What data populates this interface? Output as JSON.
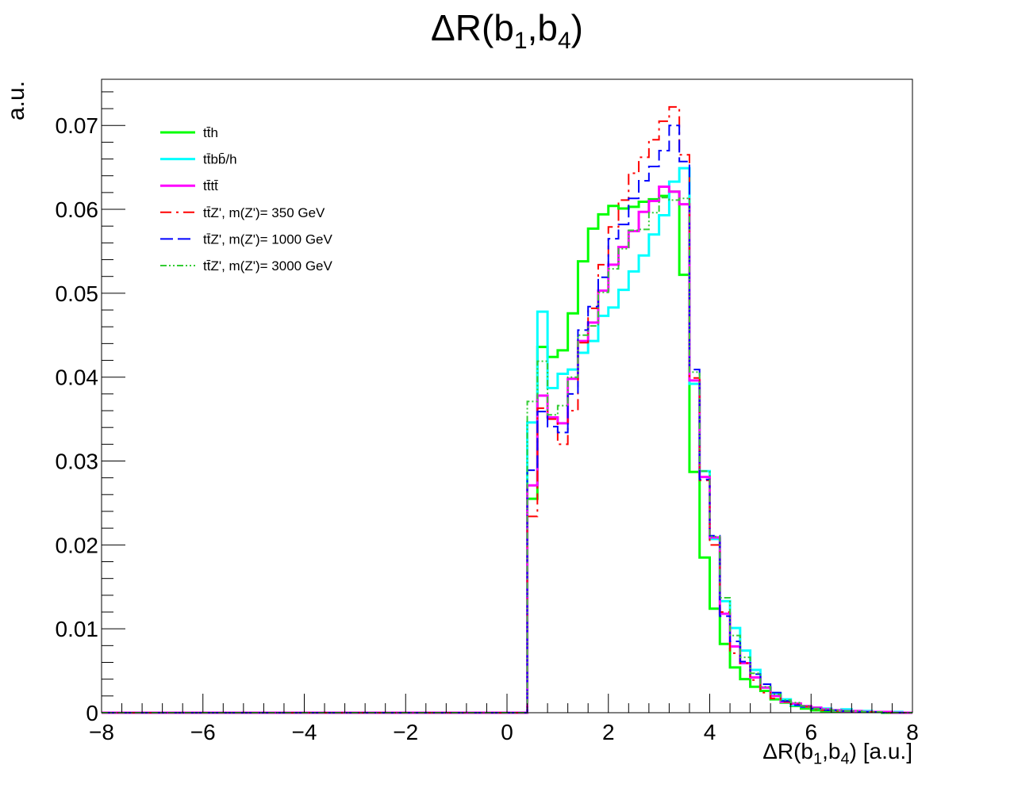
{
  "chart_data": {
    "type": "histogram",
    "title_main": "ΔR(b",
    "title_sub1": "1",
    "title_mid": ",b",
    "title_sub2": "4",
    "title_end": ")",
    "xlabel_main": "ΔR(b",
    "xlabel_sub1": "1",
    "xlabel_mid": ",b",
    "xlabel_sub2": "4",
    "xlabel_end": ") [a.u.]",
    "ylabel": "a.u.",
    "xlim": [
      -8,
      8
    ],
    "ylim": [
      0,
      0.0755
    ],
    "xticks": [
      -8,
      -6,
      -4,
      -2,
      0,
      2,
      4,
      6,
      8
    ],
    "xtick_labels": [
      "−8",
      "−6",
      "−4",
      "−2",
      "0",
      "2",
      "4",
      "6",
      "8"
    ],
    "yticks": [
      0,
      0.01,
      0.02,
      0.03,
      0.04,
      0.05,
      0.06,
      0.07
    ],
    "ytick_labels": [
      "0",
      "0.01",
      "0.02",
      "0.03",
      "0.04",
      "0.05",
      "0.06",
      "0.07"
    ],
    "bin_start": 0.4,
    "bin_width": 0.2,
    "legend_position": "top-left",
    "series": [
      {
        "name": "tt̄h",
        "color": "#00ff00",
        "dash": "",
        "width": 3,
        "values": [
          0.0255,
          0.0436,
          0.0424,
          0.0432,
          0.0476,
          0.0538,
          0.0577,
          0.0594,
          0.0604,
          0.0601,
          0.0603,
          0.0609,
          0.0612,
          0.0616,
          0.0621,
          0.0522,
          0.0287,
          0.0185,
          0.0124,
          0.0082,
          0.0054,
          0.004,
          0.0031,
          0.0026,
          0.0016,
          0.0012,
          0.0008,
          0.0005,
          0.0003,
          0.0002,
          0.0001,
          0.0001,
          0.0001,
          0.0001,
          0.0001,
          0.0,
          0.0,
          0.0
        ]
      },
      {
        "name": "tt̄bb̄/h",
        "color": "#00ffff",
        "dash": "",
        "width": 3,
        "values": [
          0.0346,
          0.0478,
          0.0387,
          0.0404,
          0.0409,
          0.0429,
          0.0443,
          0.0473,
          0.0483,
          0.0504,
          0.0526,
          0.0545,
          0.057,
          0.0593,
          0.0633,
          0.0649,
          0.0392,
          0.0288,
          0.0207,
          0.0133,
          0.0101,
          0.0074,
          0.0051,
          0.003,
          0.0023,
          0.0016,
          0.0009,
          0.0007,
          0.0006,
          0.0005,
          0.0003,
          0.0004,
          0.0002,
          0.0002,
          0.0001,
          0.0001,
          0.0001,
          0.0
        ]
      },
      {
        "name": "tt̄tt̄",
        "color": "#ff00ff",
        "dash": "",
        "width": 3,
        "values": [
          0.0271,
          0.0378,
          0.0352,
          0.0345,
          0.0398,
          0.0443,
          0.0465,
          0.0503,
          0.0534,
          0.0555,
          0.0574,
          0.0597,
          0.061,
          0.0627,
          0.0621,
          0.0606,
          0.0396,
          0.0281,
          0.0209,
          0.0118,
          0.0079,
          0.0059,
          0.0042,
          0.003,
          0.002,
          0.0013,
          0.0011,
          0.0008,
          0.0006,
          0.0004,
          0.0003,
          0.0002,
          0.0002,
          0.0001,
          0.0001,
          0.0001,
          0.0,
          0.0
        ]
      },
      {
        "name": "tt̄Z', m(Z')= 350 GeV",
        "color": "#ff0000",
        "dash": "14,6,3,6",
        "width": 2,
        "values": [
          0.0234,
          0.0363,
          0.035,
          0.032,
          0.036,
          0.0441,
          0.0482,
          0.0534,
          0.0579,
          0.0611,
          0.0643,
          0.0662,
          0.0683,
          0.0705,
          0.0722,
          0.0665,
          0.0399,
          0.0277,
          0.02,
          0.012,
          0.0071,
          0.0059,
          0.0039,
          0.0024,
          0.0017,
          0.0013,
          0.001,
          0.0007,
          0.0004,
          0.0003,
          0.0002,
          0.0002,
          0.0001,
          0.0001,
          0.0001,
          0.0,
          0.0,
          0.0
        ]
      },
      {
        "name": "tt̄Z', m(Z')= 1000 GeV",
        "color": "#0000ff",
        "dash": "16,6",
        "width": 2,
        "values": [
          0.0289,
          0.0359,
          0.0341,
          0.0334,
          0.038,
          0.0456,
          0.0484,
          0.0519,
          0.0565,
          0.0582,
          0.0613,
          0.0634,
          0.0651,
          0.067,
          0.07,
          0.0657,
          0.0409,
          0.0278,
          0.0211,
          0.0115,
          0.0085,
          0.0061,
          0.0046,
          0.0034,
          0.0024,
          0.0014,
          0.0009,
          0.0007,
          0.0005,
          0.0003,
          0.0003,
          0.0002,
          0.0001,
          0.0001,
          0.0001,
          0.0,
          0.0,
          0.0
        ]
      },
      {
        "name": "tt̄Z', m(Z')= 3000 GeV",
        "color": "#33cc33",
        "dash": "8,3,2,3,2,3",
        "width": 2,
        "values": [
          0.0371,
          0.0419,
          0.0355,
          0.0366,
          0.04,
          0.045,
          0.0461,
          0.0501,
          0.0529,
          0.0553,
          0.0575,
          0.0576,
          0.0596,
          0.0614,
          0.0611,
          0.0613,
          0.0406,
          0.0288,
          0.021,
          0.0137,
          0.0092,
          0.0066,
          0.0047,
          0.0031,
          0.0022,
          0.0015,
          0.0012,
          0.0008,
          0.0005,
          0.0004,
          0.0003,
          0.0002,
          0.0002,
          0.0001,
          0.0001,
          0.0,
          0.0,
          0.0
        ]
      }
    ]
  }
}
